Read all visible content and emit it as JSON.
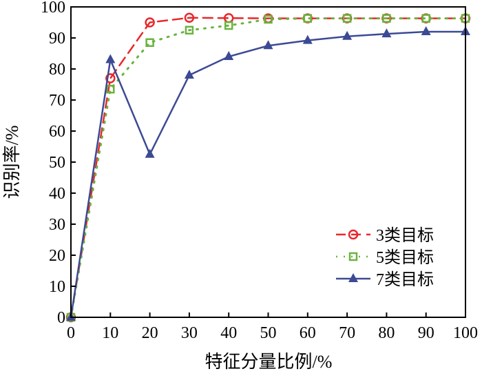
{
  "chart_data": {
    "type": "line",
    "title": "",
    "xlabel": "特征分量比例/%",
    "ylabel": "识别率/%",
    "xlim": [
      0,
      100
    ],
    "ylim": [
      0,
      100
    ],
    "x": [
      0,
      10,
      20,
      30,
      40,
      50,
      60,
      70,
      80,
      90,
      100
    ],
    "xticks": [
      "0",
      "10",
      "20",
      "30",
      "40",
      "50",
      "60",
      "70",
      "80",
      "90",
      "100"
    ],
    "yticks": [
      "0",
      "10",
      "20",
      "30",
      "40",
      "50",
      "60",
      "70",
      "80",
      "90",
      "100"
    ],
    "grid": false,
    "legend_position": "bottom-right",
    "series": [
      {
        "name": "3类目标",
        "color": "#e8282b",
        "marker": "circle",
        "dash": "dashed",
        "values": [
          0,
          77,
          95,
          96.5,
          96.4,
          96.3,
          96.3,
          96.3,
          96.3,
          96.3,
          96.3
        ]
      },
      {
        "name": "5类目标",
        "color": "#6ab33e",
        "marker": "square",
        "dash": "dotted",
        "values": [
          0,
          73.5,
          88.5,
          92.5,
          94,
          96,
          96.3,
          96.3,
          96.3,
          96.3,
          96.3
        ]
      },
      {
        "name": "7类目标",
        "color": "#3c4a94",
        "marker": "triangle",
        "dash": "solid",
        "values": [
          0,
          83,
          52.5,
          78,
          84,
          87.5,
          89.2,
          90.5,
          91.3,
          92,
          92
        ]
      }
    ]
  }
}
